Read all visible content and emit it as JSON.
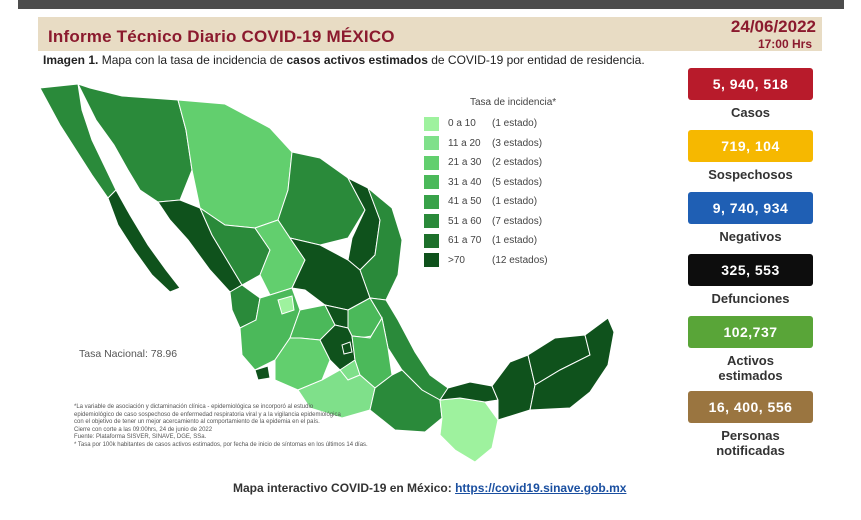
{
  "header": {
    "title": "Informe Técnico Diario COVID-19 MÉXICO",
    "date": "24/06/2022",
    "time": "17:00 Hrs"
  },
  "subtitle": {
    "prefix": "Imagen 1.",
    "text_a": " Mapa con la tasa de incidencia de ",
    "bold": "casos activos estimados",
    "text_b": " de COVID-19 por entidad de residencia."
  },
  "legend": {
    "title": "Tasa de incidencia*",
    "items": [
      {
        "range": "0 a 10",
        "count": "(1 estado)",
        "color": "#9ef29e"
      },
      {
        "range": "11 a 20",
        "count": "(3 estados)",
        "color": "#7fe08a"
      },
      {
        "range": "21 a 30",
        "count": "(2 estados)",
        "color": "#62cf6e"
      },
      {
        "range": "31 a 40",
        "count": "(5 estados)",
        "color": "#4bb95a"
      },
      {
        "range": "41 a 50",
        "count": "(1 estado)",
        "color": "#38a249"
      },
      {
        "range": "51 a 60",
        "count": "(7 estados)",
        "color": "#2a8a3a"
      },
      {
        "range": "61 a 70",
        "count": "(1 estado)",
        "color": "#1d702b"
      },
      {
        "range": ">70",
        "count": "(12 estados)",
        "color": "#0f521c"
      }
    ]
  },
  "tasa_nacional": "Tasa Nacional: 78.96",
  "notes": [
    "*La variable de asociación y dictaminación clínica - epidemiológica se incorporó al estudio",
    "epidemiológico de caso sospechoso de enfermedad respiratoria viral y a la vigilancia epidemiológica",
    "con el objetivo de tener un mejor acercamiento al comportamiento de la epidemia en el país.",
    "Cierre con corte a las 09:00hrs, 24 de junio de 2022",
    "Fuente: Plataforma SISVER, SINAVE, DGE, SSa.",
    "* Tasa por 100k habitantes de casos activos estimados, por fecha de inicio de síntomas en los últimos 14 días."
  ],
  "stats": [
    {
      "value": "5, 940, 518",
      "label": "Casos",
      "color": "#b81b2b"
    },
    {
      "value": "719, 104",
      "label": "Sospechosos",
      "color": "#f6b800"
    },
    {
      "value": "9, 740, 934",
      "label": "Negativos",
      "color": "#1f5fb4"
    },
    {
      "value": "325, 553",
      "label": "Defunciones",
      "color": "#0d0d0d"
    },
    {
      "value": "102,737",
      "label": "Activos estimados",
      "color": "#59a538"
    },
    {
      "value": "16, 400, 556",
      "label": "Personas notificadas",
      "color": "#9a7540"
    }
  ],
  "footer": {
    "text": "Mapa interactivo COVID-19 en México: ",
    "link": "https://covid19.sinave.gob.mx"
  }
}
